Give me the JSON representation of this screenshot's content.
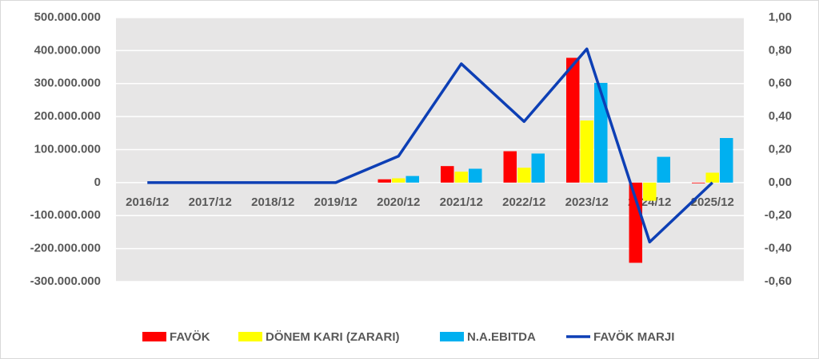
{
  "chart_data": {
    "type": "bar",
    "categories": [
      "2016/12",
      "2017/12",
      "2018/12",
      "2019/12",
      "2020/12",
      "2021/12",
      "2022/12",
      "2023/12",
      "2024/12",
      "2025/12"
    ],
    "series": [
      {
        "name": "FAVÖK",
        "type": "bar",
        "color": "#ff0000",
        "values": [
          0,
          0,
          0,
          0,
          10000000,
          50000000,
          95000000,
          378000000,
          -243000000,
          -2000000
        ]
      },
      {
        "name": "DÖNEM KARI (ZARARI)",
        "type": "bar",
        "color": "#ffff00",
        "values": [
          0,
          0,
          0,
          0,
          13000000,
          33000000,
          45000000,
          188000000,
          -55000000,
          30000000
        ]
      },
      {
        "name": "N.A.EBITDA",
        "type": "bar",
        "color": "#00b0f0",
        "values": [
          0,
          0,
          0,
          0,
          20000000,
          42000000,
          88000000,
          302000000,
          78000000,
          135000000
        ]
      },
      {
        "name": "FAVÖK MARJI",
        "type": "line",
        "axis": "y2",
        "color": "#0d3fb5",
        "values": [
          0,
          0,
          0,
          0,
          0.16,
          0.72,
          0.37,
          0.81,
          -0.36,
          0.0
        ]
      }
    ],
    "ylim": [
      -300000000,
      500000000
    ],
    "yticks": [
      {
        "value": -300000000,
        "label": "-300.000.000"
      },
      {
        "value": -200000000,
        "label": "-200.000.000"
      },
      {
        "value": -100000000,
        "label": "-100.000.000"
      },
      0,
      {
        "value": 100000000,
        "label": "100.000.000"
      },
      {
        "value": 200000000,
        "label": "200.000.000"
      },
      {
        "value": 300000000,
        "label": "300.000.000"
      },
      {
        "value": 400000000,
        "label": "400.000.000"
      },
      {
        "value": 500000000,
        "label": "500.000.000"
      }
    ],
    "y2lim": [
      -0.6,
      1.0
    ],
    "y2ticks": [
      {
        "value": -0.6,
        "label": "-0,60"
      },
      {
        "value": -0.4,
        "label": "-0,40"
      },
      {
        "value": -0.2,
        "label": "-0,20"
      },
      {
        "value": 0,
        "label": "0,00"
      },
      {
        "value": 0.2,
        "label": "0,20"
      },
      {
        "value": 0.4,
        "label": "0,40"
      },
      {
        "value": 0.6,
        "label": "0,60"
      },
      {
        "value": 0.8,
        "label": "0,80"
      },
      {
        "value": 1.0,
        "label": "1,00"
      }
    ],
    "grid": true,
    "legend": "bottom"
  }
}
